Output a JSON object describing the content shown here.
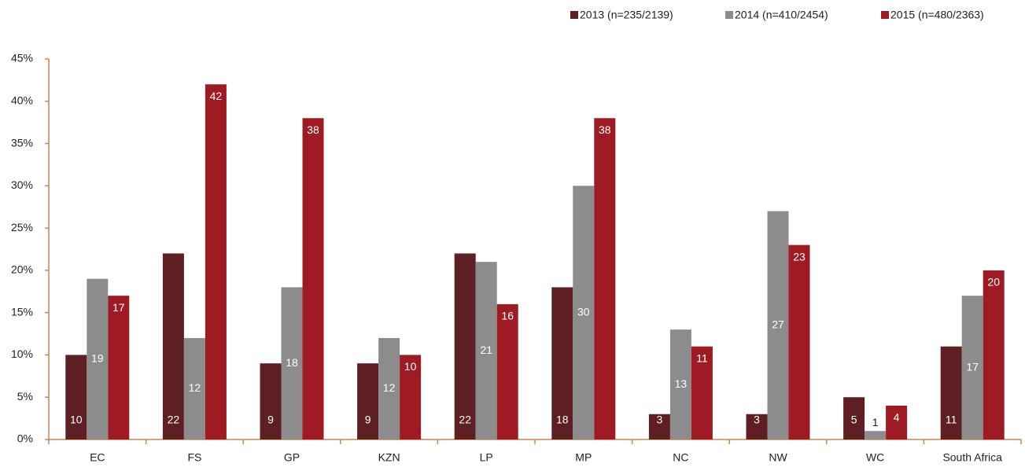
{
  "chart_data": {
    "type": "bar",
    "categories": [
      "EC",
      "FS",
      "GP",
      "KZN",
      "LP",
      "MP",
      "NC",
      "NW",
      "WC",
      "South Africa"
    ],
    "series": [
      {
        "name": "2013 (n=235/2139)",
        "color": "#5e1f22",
        "values": [
          10,
          22,
          9,
          9,
          22,
          18,
          3,
          3,
          5,
          11
        ]
      },
      {
        "name": "2014 (n=410/2454)",
        "color": "#8c8c8c",
        "values": [
          19,
          12,
          18,
          12,
          21,
          30,
          13,
          27,
          1,
          17
        ]
      },
      {
        "name": "2015 (n=480/2363)",
        "color": "#9e1b24",
        "values": [
          17,
          42,
          38,
          10,
          16,
          38,
          11,
          23,
          4,
          20
        ]
      }
    ],
    "ylim": [
      0,
      45
    ],
    "yticks": [
      {
        "value": 0,
        "label": "0%"
      },
      {
        "value": 5,
        "label": "5%"
      },
      {
        "value": 10,
        "label": "10%"
      },
      {
        "value": 15,
        "label": "15%"
      },
      {
        "value": 20,
        "label": "20%"
      },
      {
        "value": 25,
        "label": "25%"
      },
      {
        "value": 30,
        "label": "30%"
      },
      {
        "value": 35,
        "label": "35%"
      },
      {
        "value": 40,
        "label": "40%"
      },
      {
        "value": 45,
        "label": "45%"
      }
    ],
    "legend": "top-right"
  }
}
